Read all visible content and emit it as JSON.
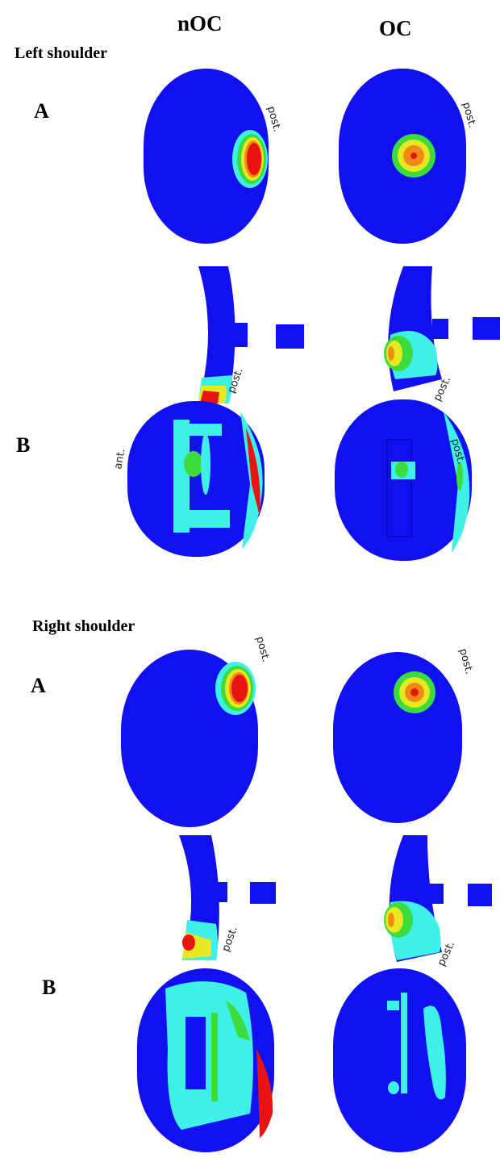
{
  "header": {
    "columns": [
      "nOC",
      "OC"
    ]
  },
  "sections": [
    {
      "title": "Left shoulder",
      "row_labels": [
        "A",
        "B"
      ],
      "annotations": [
        "post.",
        "post.",
        "post.",
        "post.",
        "ant.",
        "post."
      ]
    },
    {
      "title": "Right shoulder",
      "row_labels": [
        "A",
        "B"
      ],
      "annotations": [
        "post.",
        "post.",
        "post.",
        "post."
      ]
    }
  ]
}
